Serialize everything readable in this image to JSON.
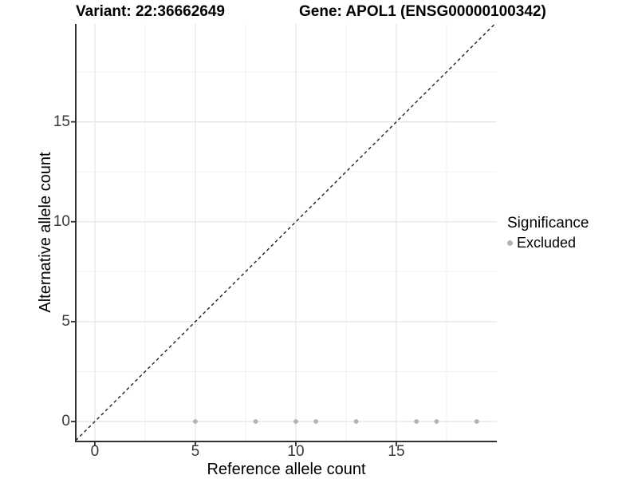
{
  "colors": {
    "background": "#ffffff",
    "point": "#b3b3b3",
    "grid_major": "#e4e4e4",
    "grid_minor": "#f1f1f1",
    "axis_line": "#2f2f2f",
    "tick_mark": "#2f2f2f",
    "tick_text": "#383838",
    "reference_line": "#1f1f1f",
    "title_text": "#000000"
  },
  "legend": {
    "title": "Significance",
    "items": [
      {
        "label": "Excluded",
        "symbol": "point-icon",
        "color": "#b3b3b3"
      }
    ]
  },
  "chart_data": {
    "type": "scatter",
    "title_left": "Variant: 22:36662649",
    "title_right": "Gene: APOL1 (ENSG00000100342)",
    "xlabel": "Reference allele count",
    "ylabel": "Alternative allele count",
    "xlim": [
      -0.95,
      20.0
    ],
    "ylim": [
      -1.0,
      19.9
    ],
    "x_ticks": [
      0,
      5,
      10,
      15
    ],
    "x_tick_labels": [
      "0",
      "5",
      "10",
      "15"
    ],
    "y_ticks": [
      0,
      5,
      10,
      15
    ],
    "y_tick_labels": [
      "0",
      "5",
      "10",
      "15"
    ],
    "x_minor_gridlines": [
      2.5,
      7.5,
      12.5,
      17.5
    ],
    "y_minor_gridlines": [
      2.5,
      7.5,
      12.5,
      17.5
    ],
    "grid": true,
    "legend_position": "right-center",
    "series": [
      {
        "name": "Excluded",
        "color": "#b3b3b3",
        "points": [
          [
            5,
            0
          ],
          [
            8,
            0
          ],
          [
            10,
            0
          ],
          [
            11,
            0
          ],
          [
            13,
            0
          ],
          [
            16,
            0
          ],
          [
            17,
            0
          ],
          [
            19,
            0
          ]
        ]
      }
    ],
    "reference_line": {
      "type": "identity",
      "slope": 1,
      "intercept": 0,
      "style": "dashed"
    }
  }
}
